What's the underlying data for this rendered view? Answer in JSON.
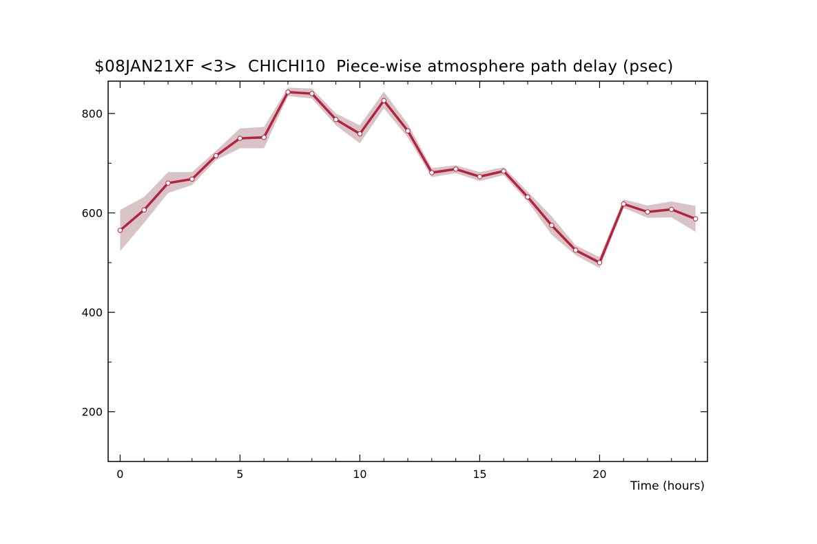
{
  "chart_data": {
    "type": "line",
    "title": "$08JAN21XF <3>  CHICHI10  Piece-wise atmosphere path delay (psec)",
    "xlabel": "Time (hours)",
    "ylabel": "",
    "xlim": [
      -0.5,
      24.5
    ],
    "ylim": [
      100,
      865
    ],
    "x_ticks": [
      0,
      5,
      10,
      15,
      20
    ],
    "x_minor_ticks": [
      1,
      2,
      3,
      4,
      6,
      7,
      8,
      9,
      11,
      12,
      13,
      14,
      16,
      17,
      18,
      19,
      21,
      22,
      23,
      24
    ],
    "y_ticks": [
      200,
      400,
      600,
      800
    ],
    "y_minor_ticks": [
      300,
      500,
      700
    ],
    "grid": false,
    "colors": {
      "line": "#b5223f",
      "band": "#d8c3c7",
      "marker_fill": "#ffffff"
    },
    "series": [
      {
        "x": [
          0,
          1,
          2,
          3,
          4,
          5,
          6,
          7,
          8,
          9,
          10,
          11,
          12,
          13,
          14,
          15,
          16,
          17,
          18,
          19,
          20,
          21,
          22,
          23,
          24
        ],
        "values": [
          565,
          606,
          660,
          668,
          715,
          750,
          752,
          843,
          840,
          788,
          759,
          826,
          765,
          681,
          688,
          673,
          684,
          632,
          575,
          525,
          500,
          618,
          602,
          607,
          588
        ],
        "lower": [
          523,
          580,
          640,
          656,
          706,
          730,
          730,
          835,
          830,
          776,
          740,
          810,
          752,
          672,
          680,
          664,
          676,
          623,
          556,
          515,
          489,
          610,
          590,
          591,
          562
        ],
        "upper": [
          606,
          632,
          682,
          682,
          725,
          770,
          773,
          852,
          850,
          800,
          776,
          844,
          779,
          690,
          696,
          682,
          692,
          643,
          593,
          535,
          511,
          627,
          615,
          623,
          614
        ]
      }
    ]
  }
}
